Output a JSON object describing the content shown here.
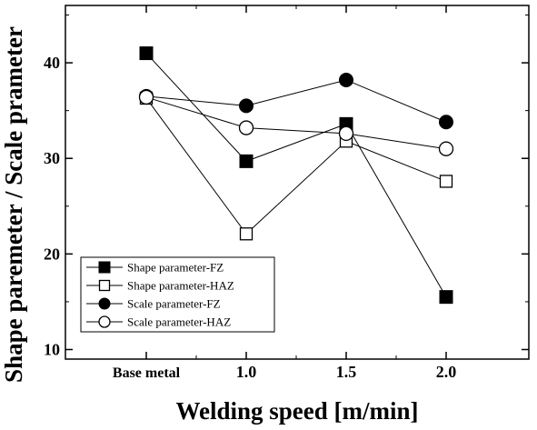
{
  "chart_data": {
    "type": "line",
    "xlabel": "Welding speed [m/min]",
    "ylabel": "Shape paremeter / Scale prameter",
    "categories": [
      "Base metal",
      "1.0",
      "1.5",
      "2.0"
    ],
    "ylim": [
      9,
      46
    ],
    "yticks": [
      "10",
      "20",
      "30",
      "40"
    ],
    "grid": false,
    "legend_position": "bottom-left",
    "series": [
      {
        "name": "Shape parameter-FZ",
        "marker": "filled-square",
        "values": [
          41.0,
          29.7,
          33.6,
          15.5
        ]
      },
      {
        "name": "Shape parameter-HAZ",
        "marker": "open-square",
        "values": [
          36.3,
          22.1,
          31.8,
          27.6
        ]
      },
      {
        "name": "Scale parameter-FZ",
        "marker": "filled-circle",
        "values": [
          36.5,
          35.5,
          38.2,
          33.8
        ]
      },
      {
        "name": "Scale parameter-HAZ",
        "marker": "open-circle",
        "values": [
          36.4,
          33.2,
          32.6,
          31.0
        ]
      }
    ]
  }
}
